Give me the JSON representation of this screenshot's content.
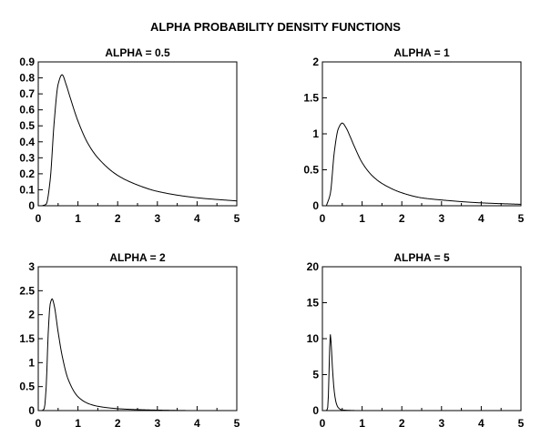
{
  "title": "ALPHA PROBABILITY DENSITY FUNCTIONS",
  "chart_data": [
    {
      "type": "line",
      "title": "ALPHA = 0.5",
      "alpha": 0.5,
      "xlim": [
        0,
        5
      ],
      "ylim": [
        0,
        0.9
      ],
      "xticks": [
        "0",
        "1",
        "2",
        "3",
        "4",
        "5"
      ],
      "xtick_values": [
        0,
        1,
        2,
        3,
        4,
        5
      ],
      "yticks": [
        "0",
        "0.1",
        "0.2",
        "0.3",
        "0.4",
        "0.5",
        "0.6",
        "0.7",
        "0.8",
        "0.9"
      ],
      "ytick_values": [
        0,
        0.1,
        0.2,
        0.3,
        0.4,
        0.5,
        0.6,
        0.7,
        0.8,
        0.9
      ],
      "series": [
        {
          "x": [
            0.1,
            0.2,
            0.3,
            0.4,
            0.5,
            0.6,
            0.7,
            0.8,
            1.0,
            1.25,
            1.5,
            2.0,
            2.5,
            3.0,
            4.0,
            5.0
          ],
          "y": [
            0.0,
            0.01,
            0.16,
            0.52,
            0.76,
            0.82,
            0.76,
            0.68,
            0.53,
            0.39,
            0.3,
            0.19,
            0.13,
            0.09,
            0.05,
            0.03
          ]
        }
      ]
    },
    {
      "type": "line",
      "title": "ALPHA = 1",
      "alpha": 1,
      "xlim": [
        0,
        5
      ],
      "ylim": [
        0,
        2
      ],
      "xticks": [
        "0",
        "1",
        "2",
        "3",
        "4",
        "5"
      ],
      "xtick_values": [
        0,
        1,
        2,
        3,
        4,
        5
      ],
      "yticks": [
        "0",
        "0.5",
        "1",
        "1.5",
        "2"
      ],
      "ytick_values": [
        0,
        0.5,
        1,
        1.5,
        2
      ],
      "series": [
        {
          "x": [
            0.1,
            0.2,
            0.3,
            0.4,
            0.5,
            0.6,
            0.7,
            0.8,
            1.0,
            1.25,
            1.5,
            2.0,
            2.5,
            3.0,
            4.0,
            5.0
          ],
          "y": [
            0.0,
            0.17,
            0.75,
            1.07,
            1.15,
            1.08,
            0.96,
            0.83,
            0.6,
            0.42,
            0.31,
            0.18,
            0.11,
            0.08,
            0.04,
            0.02
          ]
        }
      ]
    },
    {
      "type": "line",
      "title": "ALPHA = 2",
      "alpha": 2,
      "xlim": [
        0,
        5
      ],
      "ylim": [
        0,
        3
      ],
      "xticks": [
        "0",
        "1",
        "2",
        "3",
        "4",
        "5"
      ],
      "xtick_values": [
        0,
        1,
        2,
        3,
        4,
        5
      ],
      "yticks": [
        "0",
        "0.5",
        "1",
        "1.5",
        "2",
        "2.5",
        "3"
      ],
      "ytick_values": [
        0,
        0.5,
        1,
        1.5,
        2,
        2.5,
        3
      ],
      "series": [
        {
          "x": [
            0.1,
            0.15,
            0.2,
            0.25,
            0.3,
            0.35,
            0.4,
            0.5,
            0.6,
            0.75,
            1.0,
            1.25,
            1.5,
            2.0,
            2.5,
            3.0,
            4.0,
            5.0
          ],
          "y": [
            0.0,
            0.04,
            0.5,
            1.6,
            2.22,
            2.33,
            2.2,
            1.64,
            1.15,
            0.66,
            0.29,
            0.15,
            0.09,
            0.04,
            0.02,
            0.01,
            0.0,
            0.0
          ]
        }
      ]
    },
    {
      "type": "line",
      "title": "ALPHA = 5",
      "alpha": 5,
      "xlim": [
        0,
        5
      ],
      "ylim": [
        0,
        20
      ],
      "xticks": [
        "0",
        "1",
        "2",
        "3",
        "4",
        "5"
      ],
      "xtick_values": [
        0,
        1,
        2,
        3,
        4,
        5
      ],
      "yticks": [
        "0",
        "5",
        "10",
        "15",
        "20"
      ],
      "ytick_values": [
        0,
        5,
        10,
        15,
        20
      ],
      "series": [
        {
          "x": [
            0.1,
            0.13,
            0.15,
            0.17,
            0.19,
            0.2,
            0.22,
            0.25,
            0.3,
            0.35,
            0.4,
            0.5,
            1.0,
            5.0
          ],
          "y": [
            0.0,
            0.3,
            2.0,
            6.0,
            9.8,
            10.6,
            9.4,
            6.2,
            2.6,
            1.0,
            0.4,
            0.08,
            0.0,
            0.0
          ]
        }
      ]
    }
  ]
}
